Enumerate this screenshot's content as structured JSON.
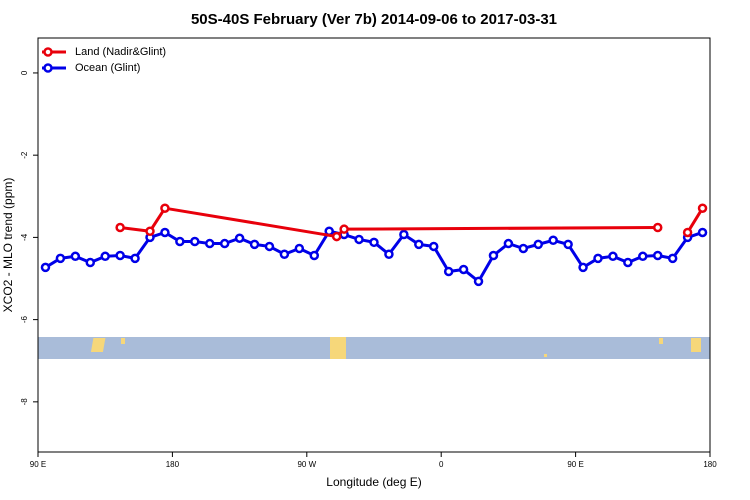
{
  "chart_data": {
    "type": "line",
    "title": "50S-40S February (Ver 7b)   2014-09-06 to 2017-03-31",
    "xlabel": "Longitude (deg E)",
    "ylabel": "XCO2 - MLO trend (ppm)",
    "xlim": [
      90,
      540
    ],
    "xticks": [
      {
        "value": 90,
        "label": "90 E"
      },
      {
        "value": 180,
        "label": "180"
      },
      {
        "value": 270,
        "label": "90 W"
      },
      {
        "value": 360,
        "label": "0"
      },
      {
        "value": 450,
        "label": "90 E"
      },
      {
        "value": 540,
        "label": "180"
      }
    ],
    "ylim": [
      -9.22,
      0.85
    ],
    "yticks": [
      0,
      -2,
      -4,
      -6,
      -8
    ],
    "legend": "top-left",
    "series": [
      {
        "name": "Land (Nadir&Glint)",
        "color": "#e8000b",
        "x": [
          145,
          165,
          175,
          290,
          295,
          505,
          515,
          525,
          535
        ],
        "values": [
          -3.76,
          -3.85,
          -3.29,
          -3.98,
          -3.8,
          -3.76,
          null,
          -3.88,
          -3.29
        ]
      },
      {
        "name": "Ocean (Glint)",
        "color": "#0000e8",
        "x": [
          95,
          105,
          115,
          125,
          135,
          145,
          155,
          165,
          175,
          185,
          195,
          205,
          215,
          225,
          235,
          245,
          255,
          265,
          275,
          285,
          295,
          305,
          315,
          325,
          335,
          345,
          355,
          365,
          375,
          385,
          395,
          405,
          415,
          425,
          435,
          445,
          455,
          465,
          475,
          485,
          495,
          505,
          515,
          525,
          535
        ],
        "values": [
          -4.73,
          -4.51,
          -4.46,
          -4.61,
          -4.46,
          -4.44,
          -4.51,
          -4.0,
          -3.88,
          -4.1,
          -4.1,
          -4.15,
          -4.15,
          -4.02,
          -4.17,
          -4.22,
          -4.41,
          -4.27,
          -4.44,
          -3.85,
          -3.93,
          -4.05,
          -4.12,
          -4.41,
          -3.93,
          -4.17,
          -4.22,
          -4.83,
          -4.78,
          -5.07,
          -4.44,
          -4.15,
          -4.27,
          -4.17,
          -4.07,
          -4.17,
          -4.73,
          -4.51,
          -4.46,
          -4.61,
          -4.46,
          -4.44,
          -4.51,
          -4.0,
          -3.88
        ]
      }
    ]
  }
}
